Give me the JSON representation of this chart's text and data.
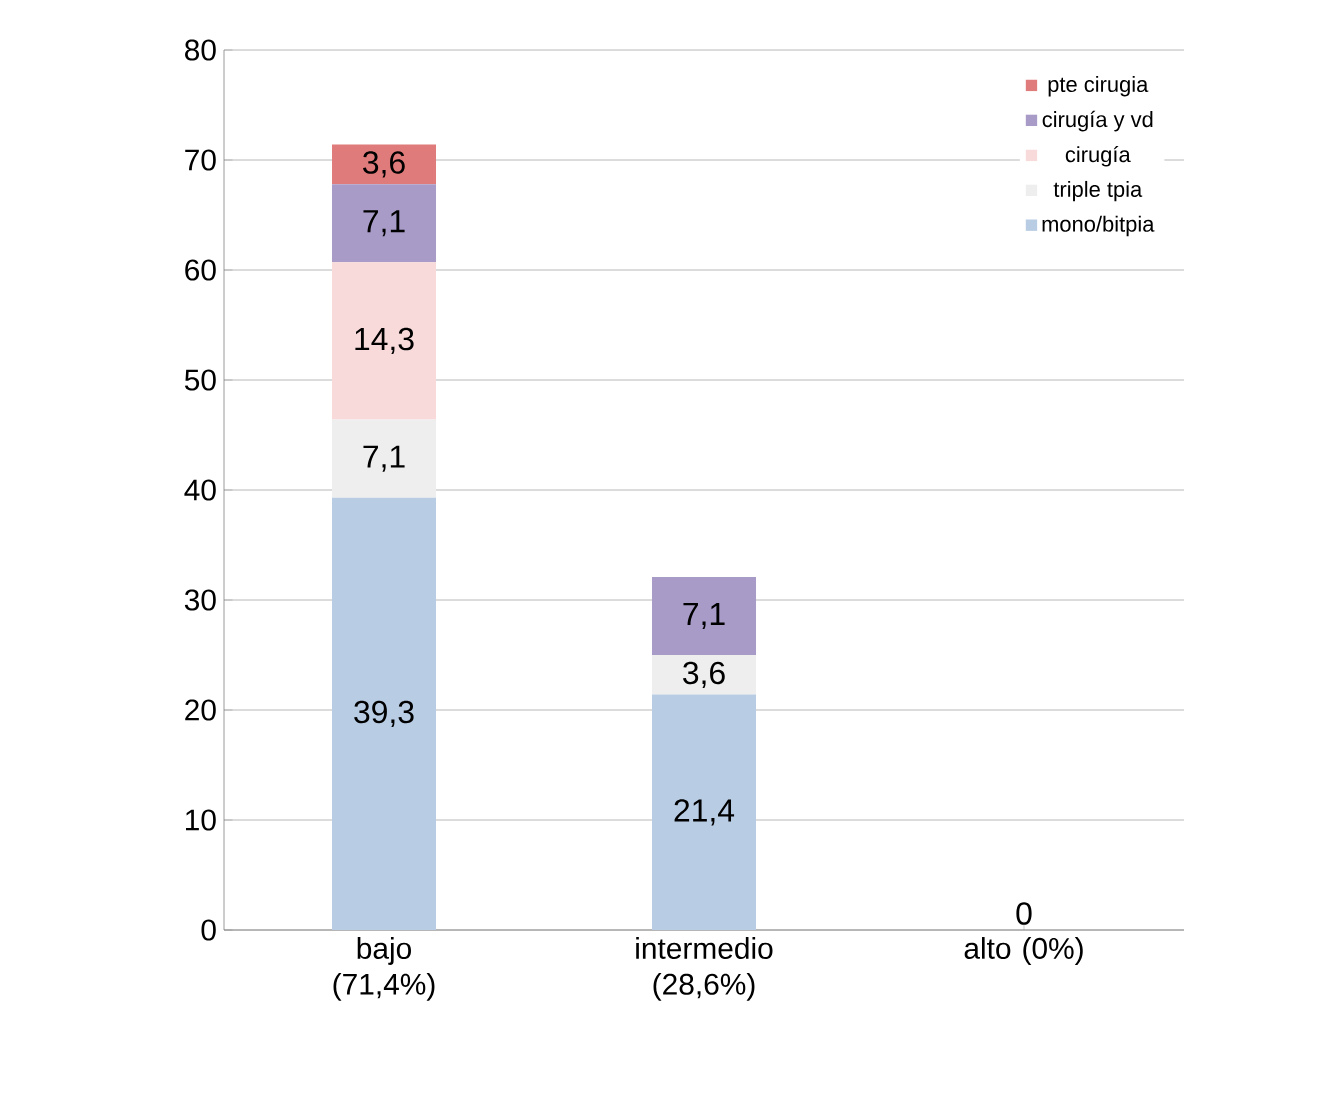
{
  "chart_data": {
    "type": "bar",
    "stacked": true,
    "categories": [
      "bajo (71,4%)",
      "intermedio (28,6%)",
      "alto (0%)"
    ],
    "series": [
      {
        "name": "mono/bitpia",
        "color": "#b8cce4",
        "values": [
          39.3,
          21.4,
          0
        ],
        "value_labels": [
          "39,3",
          "21,4",
          "0"
        ]
      },
      {
        "name": "triple tpia",
        "color": "#eeeeee",
        "values": [
          7.1,
          3.6,
          0
        ],
        "value_labels": [
          "7,1",
          "3,6",
          null
        ]
      },
      {
        "name": "cirugía",
        "color": "#f9dada",
        "values": [
          14.3,
          0,
          0
        ],
        "value_labels": [
          "14,3",
          null,
          null
        ]
      },
      {
        "name": "cirugía y vd",
        "color": "#a99bc8",
        "values": [
          7.1,
          7.1,
          0
        ],
        "value_labels": [
          "7,1",
          "7,1",
          null
        ]
      },
      {
        "name": "pte cirugia",
        "color": "#e07b7b",
        "values": [
          3.6,
          0,
          0
        ],
        "value_labels": [
          "3,6",
          null,
          null
        ]
      }
    ],
    "ylim": [
      0,
      80
    ],
    "yticks": [
      0,
      10,
      20,
      30,
      40,
      50,
      60,
      70,
      80
    ],
    "grid": "y",
    "legend": "top right"
  }
}
